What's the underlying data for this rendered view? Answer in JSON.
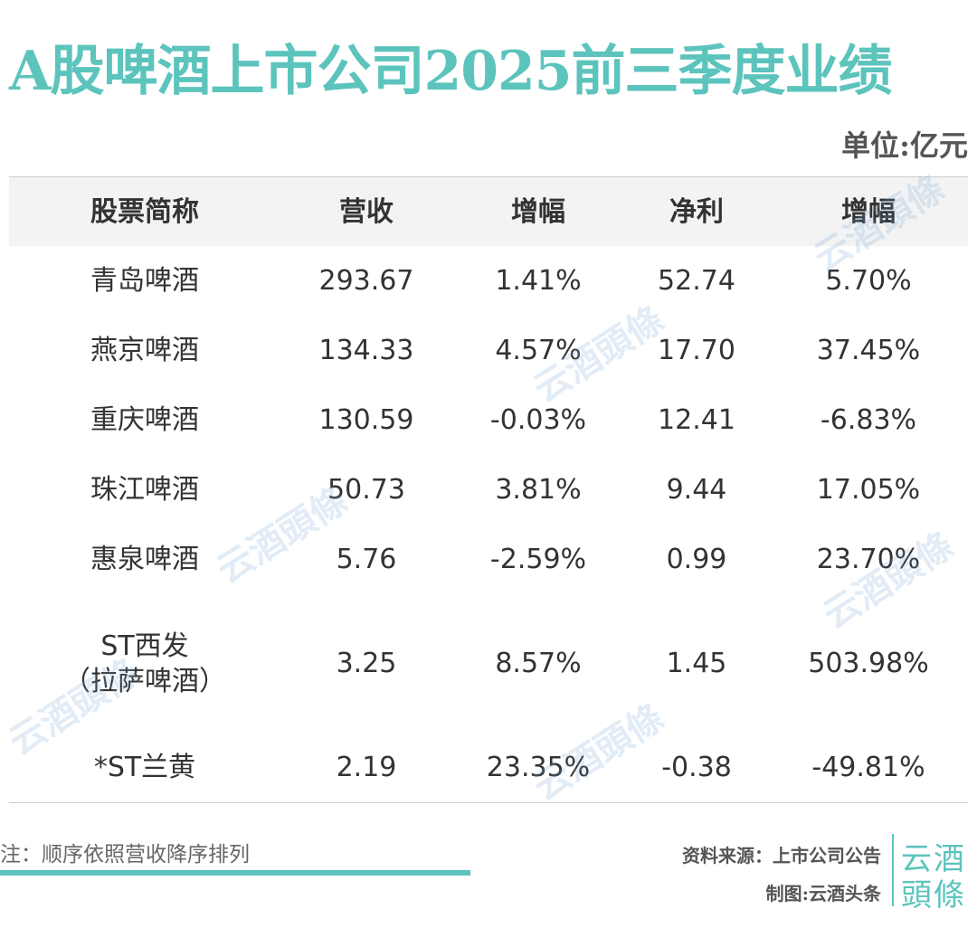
{
  "title": "A股啤酒上市公司2025前三季度业绩",
  "unit": "单位:亿元",
  "table": {
    "header": [
      "股票简称",
      "营收",
      "增幅",
      "净利",
      "增幅"
    ],
    "rows": [
      [
        "青岛啤酒",
        "293.67",
        "1.41%",
        "52.74",
        "5.70%"
      ],
      [
        "燕京啤酒",
        "134.33",
        "4.57%",
        "17.70",
        "37.45%"
      ],
      [
        "重庆啤酒",
        "130.59",
        "-0.03%",
        "12.41",
        "-6.83%"
      ],
      [
        "珠江啤酒",
        "50.73",
        "3.81%",
        "9.44",
        "17.05%"
      ],
      [
        "惠泉啤酒",
        "5.76",
        "-2.59%",
        "0.99",
        "23.70%"
      ],
      [
        "ST西发\n（拉萨啤酒）",
        "3.25",
        "8.57%",
        "1.45",
        "503.98%"
      ],
      [
        "*ST兰黄",
        "2.19",
        "23.35%",
        "-0.38",
        "-49.81%"
      ]
    ]
  },
  "note": "注：顺序依照营收降序排列",
  "source": "资料来源：上市公司公告",
  "credit": "制图:云酒头条",
  "logo": [
    "云酒",
    "頭條"
  ],
  "watermark": "云酒頭條"
}
